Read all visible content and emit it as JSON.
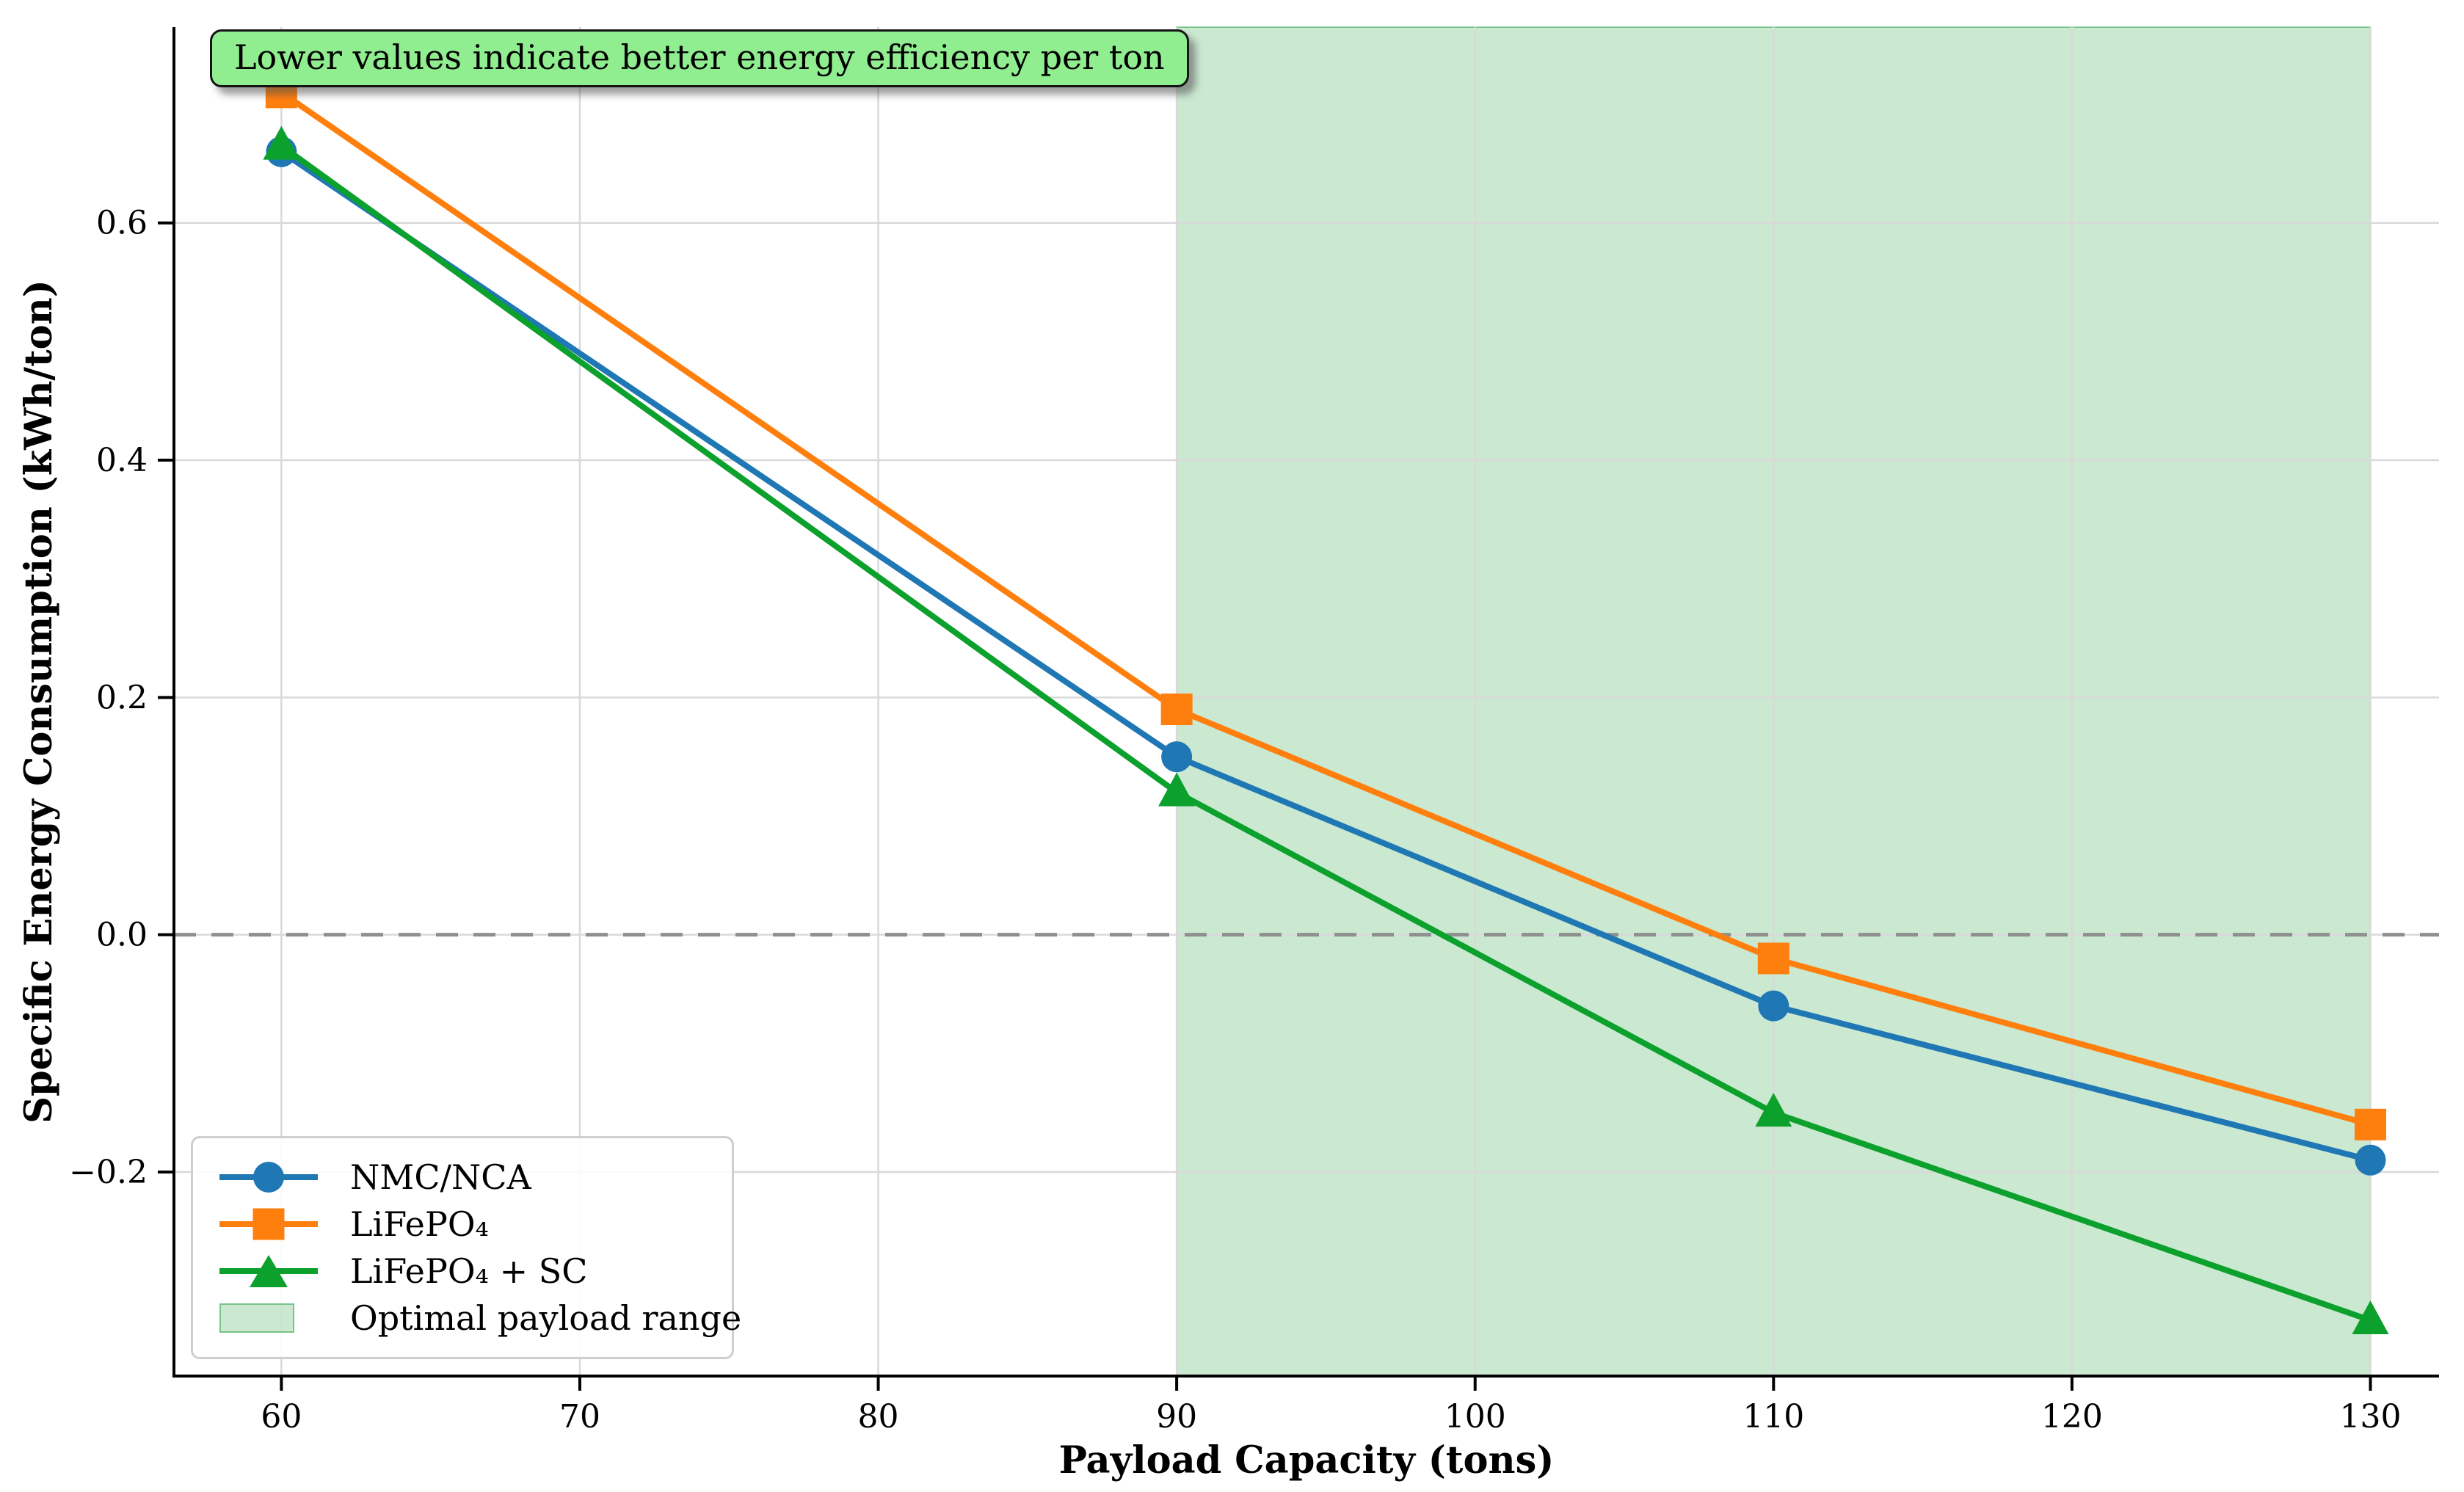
{
  "figure": {
    "annotation_text": "Lower values indicate better energy efficiency per ton",
    "annotation_fill": "#90ee90",
    "background": "#ffffff"
  },
  "chart_data": {
    "type": "line",
    "x": [
      60,
      90,
      110,
      130
    ],
    "series": [
      {
        "name": "NMC/NCA",
        "marker": "circle",
        "color": "#1f77b4",
        "values": [
          0.66,
          0.15,
          -0.06,
          -0.19
        ]
      },
      {
        "name": "LiFePO₄",
        "marker": "square",
        "color": "#ff7f0e",
        "values": [
          0.71,
          0.19,
          -0.02,
          -0.16
        ]
      },
      {
        "name": "LiFePO₄ + SC",
        "marker": "triangle",
        "color": "#0ca02c",
        "values": [
          0.665,
          0.12,
          -0.15,
          -0.325
        ]
      }
    ],
    "band": {
      "label": "Optimal payload range",
      "from": 90,
      "to": 130,
      "fill": "rgba(20,150,45,0.22)",
      "edge": "rgba(20,150,45,0.45)"
    },
    "zero_line": {
      "value": 0.0,
      "style": "dashed",
      "color": "#8f8f8f"
    },
    "x_ticks": [
      {
        "value": 60,
        "label": "60"
      },
      {
        "value": 70,
        "label": "70"
      },
      {
        "value": 80,
        "label": "80"
      },
      {
        "value": 90,
        "label": "90"
      },
      {
        "value": 100,
        "label": "100"
      },
      {
        "value": 110,
        "label": "110"
      },
      {
        "value": 120,
        "label": "120"
      },
      {
        "value": 130,
        "label": "130"
      }
    ],
    "y_ticks": [
      {
        "value": 0.6,
        "label": "0.6"
      },
      {
        "value": 0.4,
        "label": "0.4"
      },
      {
        "value": 0.2,
        "label": "0.2"
      },
      {
        "value": 0.0,
        "label": "0.0"
      },
      {
        "value": -0.2,
        "label": "−0.2"
      }
    ],
    "xlim": [
      56.4,
      132.3
    ],
    "ylim": [
      -0.372,
      0.765
    ],
    "grid": true,
    "grid_color": "#d9d9d9",
    "xlabel": "Payload Capacity (tons)",
    "ylabel": "Specific Energy Consumption (kWh/ton)",
    "legend_position": "lower left"
  }
}
